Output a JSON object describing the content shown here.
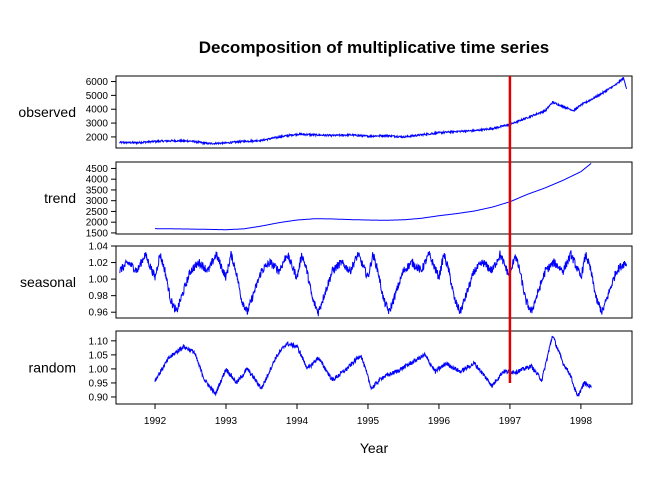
{
  "chart_data": {
    "type": "line",
    "title": "Decomposition of multiplicative time series",
    "xlabel": "Year",
    "xlim": [
      1991.45,
      1998.72
    ],
    "x_ticks": [
      "1992",
      "1993",
      "1994",
      "1995",
      "1996",
      "1997",
      "1998"
    ],
    "series_color": "#0000ff",
    "vline": {
      "x": 1997.0,
      "color": "#e00000"
    },
    "panels": [
      {
        "name": "observed",
        "ylim": [
          1200,
          6400
        ],
        "y_ticks": [
          "2000",
          "3000",
          "4000",
          "5000",
          "6000"
        ],
        "x_start": 1991.5,
        "x_end": 1998.65,
        "points": [
          [
            1991.5,
            1600
          ],
          [
            1991.75,
            1580
          ],
          [
            1992.0,
            1680
          ],
          [
            1992.25,
            1720
          ],
          [
            1992.5,
            1700
          ],
          [
            1992.75,
            1520
          ],
          [
            1993.0,
            1560
          ],
          [
            1993.25,
            1680
          ],
          [
            1993.5,
            1750
          ],
          [
            1993.75,
            2000
          ],
          [
            1994.0,
            2200
          ],
          [
            1994.25,
            2150
          ],
          [
            1994.5,
            2100
          ],
          [
            1994.75,
            2150
          ],
          [
            1995.0,
            2050
          ],
          [
            1995.25,
            2100
          ],
          [
            1995.5,
            2000
          ],
          [
            1995.75,
            2150
          ],
          [
            1996.0,
            2300
          ],
          [
            1996.25,
            2400
          ],
          [
            1996.5,
            2450
          ],
          [
            1996.75,
            2600
          ],
          [
            1997.0,
            2900
          ],
          [
            1997.25,
            3400
          ],
          [
            1997.5,
            3900
          ],
          [
            1997.6,
            4500
          ],
          [
            1997.75,
            4200
          ],
          [
            1997.9,
            3900
          ],
          [
            1998.0,
            4300
          ],
          [
            1998.25,
            5000
          ],
          [
            1998.5,
            5800
          ],
          [
            1998.6,
            6250
          ],
          [
            1998.65,
            5400
          ]
        ]
      },
      {
        "name": "trend",
        "ylim": [
          1450,
          4800
        ],
        "y_ticks": [
          "1500",
          "2000",
          "2500",
          "3000",
          "3500",
          "4000",
          "4500"
        ],
        "x_start": 1992.0,
        "x_end": 1998.15,
        "points": [
          [
            1992.0,
            1700
          ],
          [
            1992.5,
            1680
          ],
          [
            1993.0,
            1650
          ],
          [
            1993.25,
            1690
          ],
          [
            1993.5,
            1820
          ],
          [
            1993.75,
            1980
          ],
          [
            1994.0,
            2100
          ],
          [
            1994.25,
            2160
          ],
          [
            1994.5,
            2150
          ],
          [
            1994.75,
            2120
          ],
          [
            1995.0,
            2100
          ],
          [
            1995.25,
            2090
          ],
          [
            1995.5,
            2110
          ],
          [
            1995.75,
            2180
          ],
          [
            1996.0,
            2300
          ],
          [
            1996.25,
            2400
          ],
          [
            1996.5,
            2520
          ],
          [
            1996.75,
            2700
          ],
          [
            1997.0,
            2950
          ],
          [
            1997.25,
            3300
          ],
          [
            1997.5,
            3600
          ],
          [
            1997.75,
            3950
          ],
          [
            1998.0,
            4350
          ],
          [
            1998.15,
            4750
          ]
        ]
      },
      {
        "name": "seasonal",
        "ylim": [
          0.953,
          1.04
        ],
        "y_ticks": [
          "0.96",
          "0.98",
          "1.00",
          "1.02",
          "1.04"
        ],
        "x_start": 1991.5,
        "x_end": 1998.65,
        "season_points": [
          [
            0.0,
            1.002
          ],
          [
            0.07,
            1.03
          ],
          [
            0.14,
            1.01
          ],
          [
            0.22,
            0.975
          ],
          [
            0.3,
            0.96
          ],
          [
            0.4,
            0.985
          ],
          [
            0.5,
            1.01
          ],
          [
            0.62,
            1.02
          ],
          [
            0.75,
            1.01
          ],
          [
            0.86,
            1.03
          ],
          [
            1.0,
            1.002
          ]
        ]
      },
      {
        "name": "random",
        "ylim": [
          0.875,
          1.135
        ],
        "y_ticks": [
          "0.90",
          "0.95",
          "1.00",
          "1.05",
          "1.10"
        ],
        "x_start": 1992.0,
        "x_end": 1998.15,
        "points": [
          [
            1992.0,
            0.96
          ],
          [
            1992.2,
            1.04
          ],
          [
            1992.4,
            1.08
          ],
          [
            1992.55,
            1.06
          ],
          [
            1992.7,
            0.96
          ],
          [
            1992.85,
            0.91
          ],
          [
            1993.0,
            1.0
          ],
          [
            1993.15,
            0.95
          ],
          [
            1993.3,
            1.0
          ],
          [
            1993.5,
            0.93
          ],
          [
            1993.7,
            1.04
          ],
          [
            1993.85,
            1.09
          ],
          [
            1994.0,
            1.08
          ],
          [
            1994.15,
            1.0
          ],
          [
            1994.3,
            1.04
          ],
          [
            1994.5,
            0.96
          ],
          [
            1994.7,
            1.0
          ],
          [
            1994.9,
            1.05
          ],
          [
            1995.05,
            0.93
          ],
          [
            1995.2,
            0.97
          ],
          [
            1995.4,
            0.99
          ],
          [
            1995.6,
            1.02
          ],
          [
            1995.8,
            1.05
          ],
          [
            1995.95,
            0.99
          ],
          [
            1996.1,
            1.02
          ],
          [
            1996.3,
            0.99
          ],
          [
            1996.5,
            1.02
          ],
          [
            1996.75,
            0.94
          ],
          [
            1996.9,
            0.99
          ],
          [
            1997.1,
            0.99
          ],
          [
            1997.3,
            1.01
          ],
          [
            1997.45,
            0.96
          ],
          [
            1997.6,
            1.12
          ],
          [
            1997.75,
            1.02
          ],
          [
            1997.85,
            0.98
          ],
          [
            1997.95,
            0.9
          ],
          [
            1998.05,
            0.95
          ],
          [
            1998.15,
            0.935
          ]
        ]
      }
    ]
  }
}
